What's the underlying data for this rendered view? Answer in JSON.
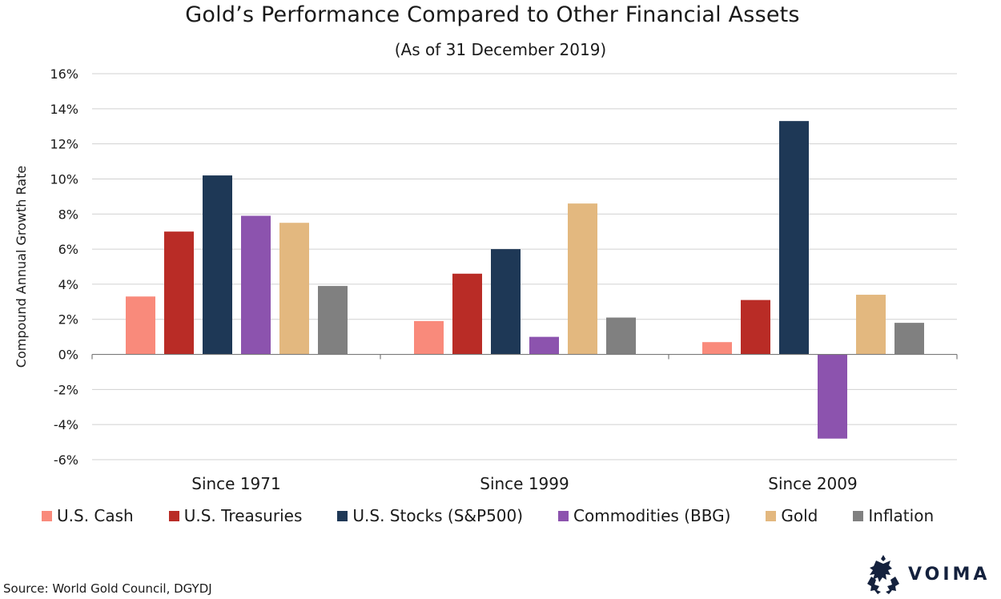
{
  "chart_data": {
    "type": "bar",
    "title": "Gold’s Performance Compared to Other Financial Assets",
    "subtitle": "(As of 31 December 2019)",
    "ylabel": "Compound Annual Growth Rate",
    "xlabel": "",
    "ylim": [
      -6,
      16
    ],
    "yticks": [
      16,
      14,
      12,
      10,
      8,
      6,
      4,
      2,
      0,
      -2,
      -4,
      -6
    ],
    "ytick_labels": [
      "16%",
      "14%",
      "12%",
      "10%",
      "8%",
      "6%",
      "4%",
      "2%",
      "0%",
      "-2%",
      "-4%",
      "-6%"
    ],
    "grid": true,
    "legend_position": "bottom",
    "categories": [
      "Since 1971",
      "Since 1999",
      "Since 2009"
    ],
    "series": [
      {
        "name": "U.S. Cash",
        "color": "#f98a7b",
        "values": [
          3.3,
          1.9,
          0.7
        ]
      },
      {
        "name": "U.S. Treasuries",
        "color": "#b92c26",
        "values": [
          7.0,
          4.6,
          3.1
        ]
      },
      {
        "name": "U.S. Stocks (S&P500)",
        "color": "#1e3856",
        "values": [
          10.2,
          6.0,
          13.3
        ]
      },
      {
        "name": "Commodities (BBG)",
        "color": "#8c53ae",
        "values": [
          7.9,
          1.0,
          -4.8
        ]
      },
      {
        "name": "Gold",
        "color": "#e3b87f",
        "values": [
          7.5,
          8.6,
          3.4
        ]
      },
      {
        "name": "Inflation",
        "color": "#808080",
        "values": [
          3.9,
          2.1,
          1.8
        ]
      }
    ]
  },
  "source": "Source: World Gold Council, DGYDJ",
  "logo": {
    "text": "VOIMA",
    "color": "#14213d"
  }
}
